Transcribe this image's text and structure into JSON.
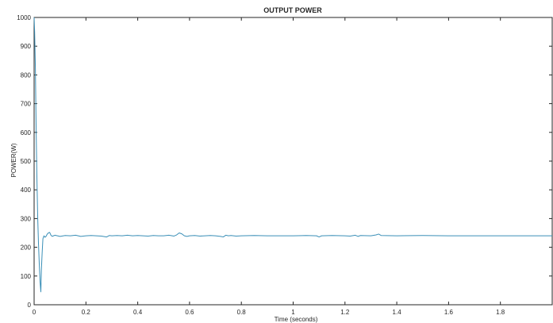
{
  "chart_data": {
    "type": "line",
    "title": "OUTPUT POWER",
    "xlabel": "Time (seconds)",
    "ylabel": "POWER(W)",
    "xlim": [
      0,
      2
    ],
    "ylim": [
      0,
      1000
    ],
    "xticks": [
      0,
      0.2,
      0.4,
      0.6,
      0.8,
      1,
      1.2,
      1.4,
      1.6,
      1.8
    ],
    "xtick_labels": [
      "0",
      "0.2",
      "0.4",
      "0.6",
      "0.8",
      "1",
      "1.2",
      "1.4",
      "1.6",
      "1.8"
    ],
    "yticks": [
      0,
      100,
      200,
      300,
      400,
      500,
      600,
      700,
      800,
      900,
      1000
    ],
    "ytick_labels": [
      "0",
      "100",
      "200",
      "300",
      "400",
      "500",
      "600",
      "700",
      "800",
      "900",
      "1000"
    ],
    "grid": false,
    "series": [
      {
        "color": "#3a8fb7",
        "x": [
          0,
          0.002,
          0.005,
          0.008,
          0.011,
          0.014,
          0.017,
          0.02,
          0.023,
          0.026,
          0.028,
          0.031,
          0.034,
          0.038,
          0.042,
          0.046,
          0.05,
          0.055,
          0.06,
          0.065,
          0.07,
          0.075,
          0.08,
          0.09,
          0.1,
          0.12,
          0.14,
          0.16,
          0.18,
          0.2,
          0.22,
          0.24,
          0.26,
          0.28,
          0.29,
          0.3,
          0.32,
          0.34,
          0.36,
          0.38,
          0.4,
          0.42,
          0.44,
          0.46,
          0.48,
          0.5,
          0.52,
          0.54,
          0.55,
          0.56,
          0.57,
          0.58,
          0.59,
          0.6,
          0.62,
          0.64,
          0.66,
          0.68,
          0.7,
          0.72,
          0.73,
          0.74,
          0.75,
          0.76,
          0.78,
          0.8,
          0.85,
          0.9,
          0.95,
          1.0,
          1.05,
          1.09,
          1.1,
          1.11,
          1.15,
          1.2,
          1.22,
          1.24,
          1.25,
          1.26,
          1.3,
          1.32,
          1.33,
          1.34,
          1.4,
          1.5,
          1.6,
          1.7,
          1.8,
          1.9,
          2.0
        ],
        "y": [
          1000,
          950,
          820,
          600,
          430,
          300,
          210,
          140,
          80,
          45,
          120,
          180,
          230,
          240,
          235,
          238,
          245,
          250,
          252,
          242,
          238,
          240,
          242,
          240,
          238,
          241,
          240,
          242,
          238,
          240,
          241,
          240,
          239,
          236,
          241,
          240,
          241,
          240,
          242,
          240,
          241,
          240,
          239,
          241,
          240,
          240,
          242,
          239,
          243,
          250,
          247,
          240,
          238,
          240,
          241,
          239,
          240,
          241,
          240,
          238,
          236,
          242,
          240,
          241,
          239,
          240,
          241,
          240,
          240,
          240,
          241,
          240,
          236,
          240,
          241,
          240,
          239,
          242,
          238,
          241,
          240,
          243,
          246,
          241,
          240,
          241,
          240,
          240,
          240,
          240,
          240
        ]
      }
    ]
  }
}
